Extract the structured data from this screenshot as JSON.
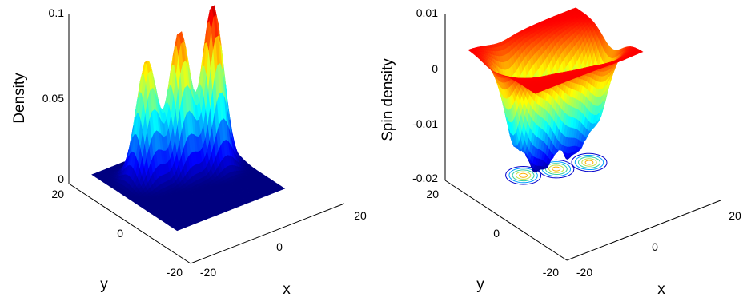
{
  "chart_data": [
    {
      "type": "surface",
      "title": "",
      "xlabel": "x",
      "ylabel": "y",
      "zlabel": "Density",
      "xlim": [
        -20,
        20
      ],
      "ylim": [
        -20,
        20
      ],
      "zlim": [
        0,
        0.1
      ],
      "xticks": [
        "-20",
        "0",
        "20"
      ],
      "yticks": [
        "-20",
        "0",
        "20"
      ],
      "zticks": [
        "0",
        "0.05",
        "0.1"
      ],
      "colormap": "jet",
      "peaks": [
        {
          "x": -6,
          "y": 12,
          "z": 0.07
        },
        {
          "x": 1,
          "y": 10,
          "z": 0.083
        },
        {
          "x": 8,
          "y": 8,
          "z": 0.095
        }
      ]
    },
    {
      "type": "surface",
      "title": "",
      "xlabel": "x",
      "ylabel": "y",
      "zlabel": "Spin density",
      "xlim": [
        -20,
        20
      ],
      "ylim": [
        -20,
        20
      ],
      "zlim": [
        -0.02,
        0.01
      ],
      "xticks": [
        "-20",
        "0",
        "20"
      ],
      "yticks": [
        "-20",
        "0",
        "20"
      ],
      "zticks": [
        "-0.02",
        "-0.01",
        "0",
        "0.01"
      ],
      "colormap": "jet",
      "contour_projection": true,
      "wells": [
        {
          "x": -6,
          "y": 12,
          "z": -0.019
        },
        {
          "x": 1,
          "y": 10,
          "z": -0.018
        },
        {
          "x": 8,
          "y": 8,
          "z": -0.016
        }
      ]
    }
  ]
}
